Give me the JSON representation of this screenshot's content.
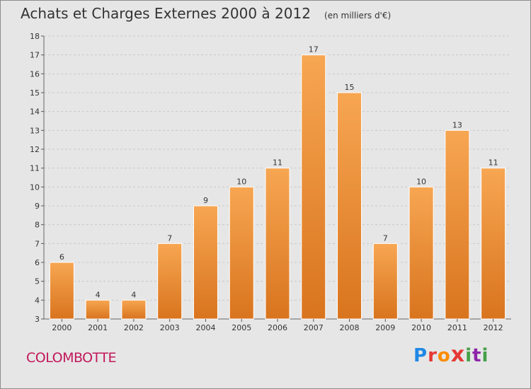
{
  "header": {
    "title": "Achats et Charges Externes 2000 à 2012",
    "subtitle": "(en milliers d'€)"
  },
  "footer": {
    "commune": "COLOMBOTTE",
    "logo": "Proxiti"
  },
  "colors": {
    "bar_light": "#f7a652",
    "bar_dark": "#d9741e",
    "background": "#e6e6e6",
    "commune_text": "#c2185b"
  },
  "chart_data": {
    "type": "bar",
    "title": "Achats et Charges Externes 2000 à 2012",
    "subtitle": "(en milliers d'€)",
    "categories": [
      "2000",
      "2001",
      "2002",
      "2003",
      "2004",
      "2005",
      "2006",
      "2007",
      "2008",
      "2009",
      "2010",
      "2011",
      "2012"
    ],
    "values": [
      6,
      4,
      4,
      7,
      9,
      10,
      11,
      17,
      15,
      7,
      10,
      13,
      11
    ],
    "data_labels": [
      "6",
      "4",
      "4",
      "7",
      "9",
      "10",
      "11",
      "17",
      "15",
      "7",
      "10",
      "13",
      "11"
    ],
    "ylim": [
      3,
      18
    ],
    "yticks": [
      "3",
      "4",
      "5",
      "6",
      "7",
      "8",
      "9",
      "10",
      "11",
      "12",
      "13",
      "14",
      "15",
      "16",
      "17",
      "18"
    ],
    "grid": true,
    "xlabel": "",
    "ylabel": ""
  }
}
